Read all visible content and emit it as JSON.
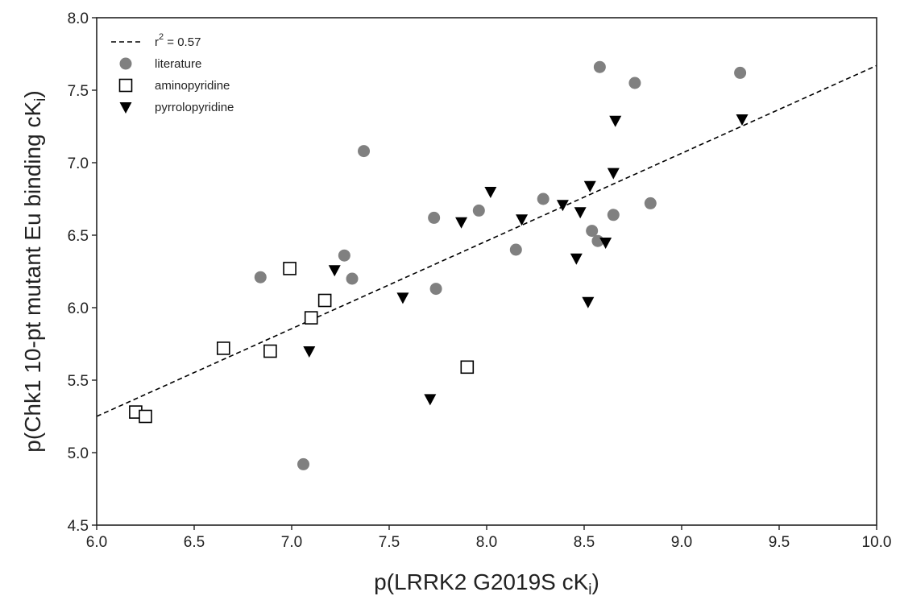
{
  "chart_data": {
    "type": "scatter",
    "title": "",
    "xlabel": "p(LRRK2 G2019S cK",
    "xlabel_sub": "i",
    "xlabel_end": ")",
    "ylabel": "p(Chk1 10-pt mutant Eu binding cK",
    "ylabel_sub": "i",
    "ylabel_end": ")",
    "xlim": [
      6.0,
      10.0
    ],
    "ylim": [
      4.5,
      8.0
    ],
    "xticks": [
      "6.0",
      "6.5",
      "7.0",
      "7.5",
      "8.0",
      "8.5",
      "9.0",
      "9.5",
      "10.0"
    ],
    "yticks": [
      "4.5",
      "5.0",
      "5.5",
      "6.0",
      "6.5",
      "7.0",
      "7.5",
      "8.0"
    ],
    "grid": false,
    "legend_position": "top-left",
    "fit_line": {
      "label_prefix": "r",
      "label_sup": "2",
      "label_suffix": " = 0.57",
      "x": [
        6.0,
        10.0
      ],
      "y": [
        5.25,
        7.67
      ],
      "style": "dashed",
      "color": "#000000"
    },
    "series": [
      {
        "name": "literature",
        "marker": "circle",
        "color": "#808080",
        "points": [
          [
            6.84,
            6.21
          ],
          [
            7.06,
            4.92
          ],
          [
            7.27,
            6.36
          ],
          [
            7.31,
            6.2
          ],
          [
            7.37,
            7.08
          ],
          [
            7.73,
            6.62
          ],
          [
            7.74,
            6.13
          ],
          [
            7.96,
            6.67
          ],
          [
            8.15,
            6.4
          ],
          [
            8.29,
            6.75
          ],
          [
            8.54,
            6.53
          ],
          [
            8.57,
            6.46
          ],
          [
            8.58,
            7.66
          ],
          [
            8.65,
            6.64
          ],
          [
            8.76,
            7.55
          ],
          [
            8.84,
            6.72
          ],
          [
            9.3,
            7.62
          ]
        ]
      },
      {
        "name": "aminopyridine",
        "marker": "square-open",
        "color": "#000000",
        "points": [
          [
            6.2,
            5.28
          ],
          [
            6.25,
            5.25
          ],
          [
            6.65,
            5.72
          ],
          [
            6.89,
            5.7
          ],
          [
            6.99,
            6.27
          ],
          [
            7.1,
            5.93
          ],
          [
            7.17,
            6.05
          ],
          [
            7.9,
            5.59
          ]
        ]
      },
      {
        "name": "pyrrolopyridine",
        "marker": "triangle-down",
        "color": "#000000",
        "points": [
          [
            7.09,
            5.7
          ],
          [
            7.22,
            6.26
          ],
          [
            7.57,
            6.07
          ],
          [
            7.71,
            5.37
          ],
          [
            7.87,
            6.59
          ],
          [
            8.02,
            6.8
          ],
          [
            8.18,
            6.61
          ],
          [
            8.39,
            6.71
          ],
          [
            8.46,
            6.34
          ],
          [
            8.48,
            6.66
          ],
          [
            8.52,
            6.04
          ],
          [
            8.53,
            6.84
          ],
          [
            8.61,
            6.45
          ],
          [
            8.65,
            6.93
          ],
          [
            8.66,
            7.29
          ],
          [
            9.31,
            7.3
          ]
        ]
      }
    ]
  }
}
